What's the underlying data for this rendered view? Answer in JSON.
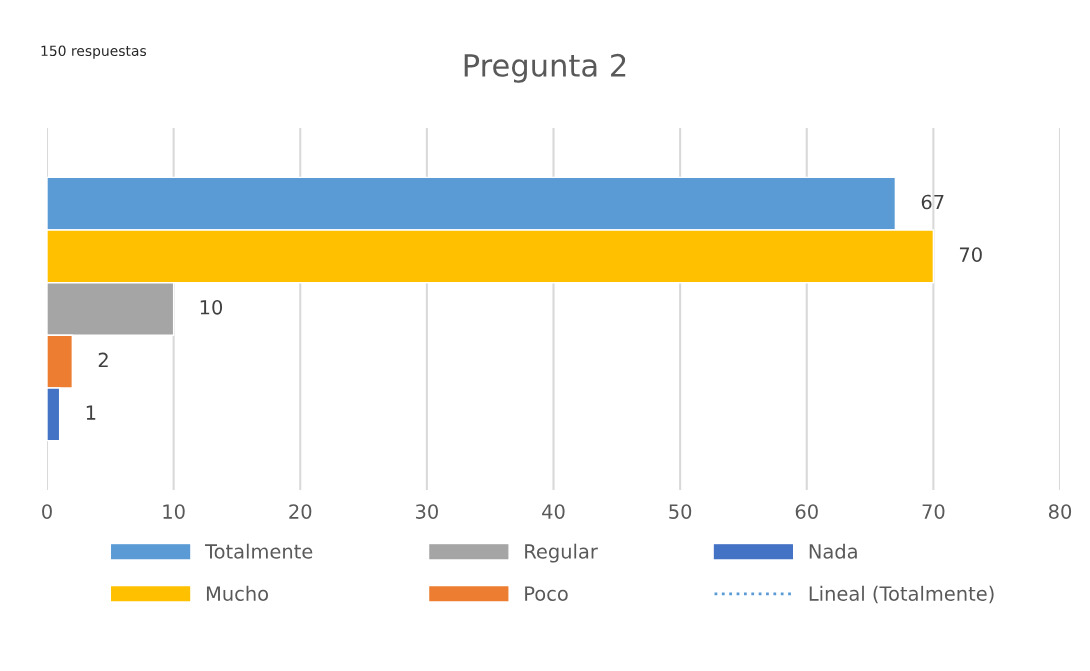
{
  "chart_data": {
    "type": "bar",
    "orientation": "horizontal",
    "title": "Pregunta 2",
    "annotations": [
      "150 respuestas"
    ],
    "categories": [
      null
    ],
    "series": [
      {
        "name": "Totalmente",
        "color": "#5b9bd5",
        "values": [
          67
        ]
      },
      {
        "name": "Mucho",
        "color": "#ffc000",
        "values": [
          70
        ]
      },
      {
        "name": "Regular",
        "color": "#a5a5a5",
        "values": [
          10
        ]
      },
      {
        "name": "Poco",
        "color": "#ed7d31",
        "values": [
          2
        ]
      },
      {
        "name": "Nada",
        "color": "#4472c4",
        "values": [
          1
        ]
      },
      {
        "name": "Lineal (Totalmente)",
        "type": "line",
        "line_style": "dotted",
        "color": "#5b9bd5",
        "values": [
          null
        ]
      }
    ],
    "xlim": [
      0,
      80
    ],
    "xticks": [
      0,
      10,
      20,
      30,
      40,
      50,
      60,
      70,
      80
    ],
    "grid": "x",
    "legend": "bottom",
    "data_labels": true
  }
}
